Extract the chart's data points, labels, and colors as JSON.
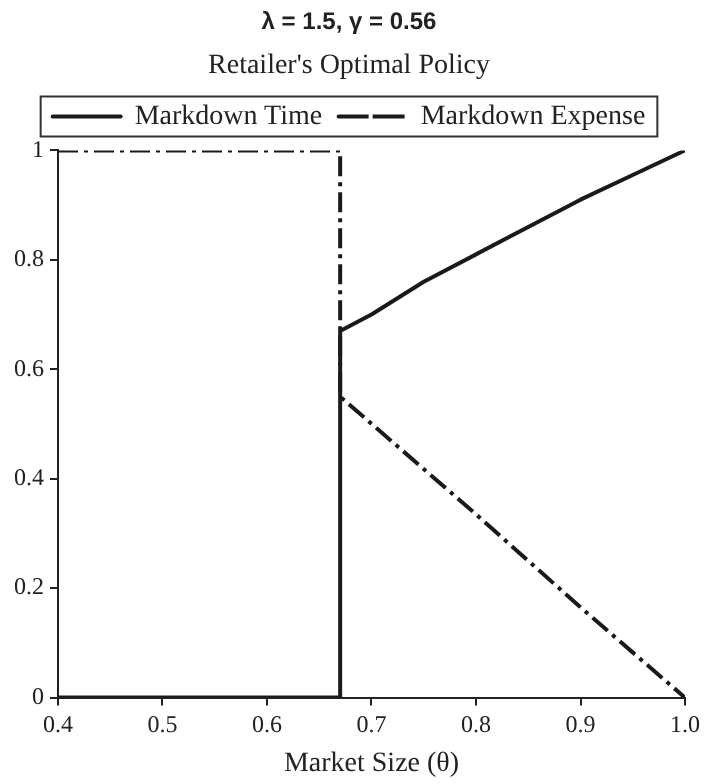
{
  "chart_data": {
    "type": "line",
    "title": "λ = 1.5, γ = 0.56",
    "subtitle": "Retailer's Optimal Policy",
    "xlabel": "Market Size (θ)",
    "xlim": [
      0.4,
      1.0
    ],
    "xticks": [
      0.4,
      0.5,
      0.6,
      0.7,
      0.8,
      0.9,
      {
        "value": 1.0,
        "label": "1.0"
      }
    ],
    "ylim": [
      0,
      1
    ],
    "yticks": [
      0,
      0.2,
      0.4,
      0.6,
      0.8,
      1
    ],
    "grid": false,
    "legend": "top",
    "marker": "none",
    "series": [
      {
        "name": "Markdown Time",
        "color": "#1a1a1a",
        "line_style": "solid",
        "x": [
          0.4,
          0.67,
          0.67,
          0.7,
          0.75,
          0.8,
          0.85,
          0.9,
          0.95,
          1.0
        ],
        "values": [
          0,
          0,
          0.67,
          0.7,
          0.76,
          0.81,
          0.86,
          0.91,
          0.955,
          1.0
        ]
      },
      {
        "name": "Markdown Expense",
        "color": "#1a1a1a",
        "line_style": "dashdot",
        "x": [
          0.4,
          0.67,
          0.67,
          0.8,
          0.9,
          1.0
        ],
        "values": [
          1,
          1,
          0.55,
          0.335,
          0.165,
          0
        ]
      }
    ]
  }
}
